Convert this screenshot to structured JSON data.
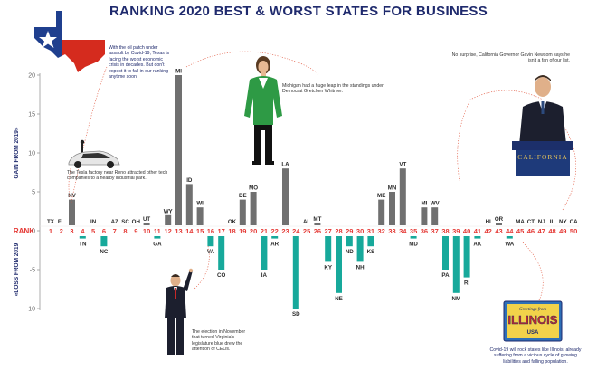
{
  "page_title": "RANKING 2020 BEST & WORST STATES FOR BUSINESS",
  "colors": {
    "gain": "#707070",
    "loss": "#17a99b",
    "rank": "#e53935",
    "title": "#1f2a6d",
    "axis_label": "#1f2a6d"
  },
  "chart_data": {
    "type": "bar",
    "title": "RANKING 2020 BEST & WORST STATES FOR BUSINESS",
    "ylabel_gain": "GAIN FROM 2019»",
    "ylabel_loss": "«LOSS FROM 2019",
    "xlabel": "RANK",
    "ylim": [
      -10,
      20
    ],
    "yticks": [
      20,
      15,
      10,
      5,
      0,
      -5,
      -10
    ],
    "ranks": [
      1,
      2,
      3,
      4,
      5,
      6,
      7,
      8,
      9,
      10,
      11,
      12,
      13,
      14,
      15,
      16,
      17,
      18,
      19,
      20,
      21,
      22,
      23,
      24,
      25,
      26,
      27,
      28,
      29,
      30,
      31,
      32,
      33,
      34,
      35,
      36,
      37,
      38,
      39,
      40,
      41,
      42,
      43,
      44,
      45,
      46,
      47,
      48,
      49,
      50
    ],
    "states": [
      "TX",
      "FL",
      "NV",
      "TN",
      "IN",
      "NC",
      "AZ",
      "SC",
      "OH",
      "UT",
      "GA",
      "WY",
      "MI",
      "ID",
      "WI",
      "VA",
      "CO",
      "OK",
      "DE",
      "MO",
      "IA",
      "AR",
      "LA",
      "SD",
      "AL",
      "MT",
      "KY",
      "NE",
      "ND",
      "NH",
      "KS",
      "ME",
      "MN",
      "VT",
      "MD",
      "MI",
      "WV",
      "PA",
      "NM",
      "RI",
      "AK",
      "HI",
      "OR",
      "WA",
      "MA",
      "CT",
      "NJ",
      "IL",
      "NY",
      "CA"
    ],
    "values": [
      0,
      0,
      4,
      -1,
      0,
      -2,
      0,
      0,
      0,
      1,
      -1,
      2,
      20,
      6,
      3,
      -2,
      -5,
      0,
      4,
      5,
      -5,
      -1,
      8,
      -10,
      0,
      1,
      -4,
      -8,
      -2,
      -4,
      -2,
      4,
      5,
      8,
      -1,
      3,
      3,
      -5,
      -8,
      -6,
      -1,
      0,
      1,
      -1,
      0,
      0,
      0,
      0,
      0,
      0
    ]
  },
  "annotations": {
    "texas": "With the oil patch under assault by Covid-19, Texas is facing the worst economic crisis in decades. But don't expect it to fall in our ranking anytime soon.",
    "tesla": "The Tesla factory near Reno attracted other tech companies to a nearby industrial park.",
    "michigan": "Michigan had a huge leap in the standings under Democrat Gretchen Whitmer.",
    "california": "No surprise, California Governor Gavin Newsom says he isn't a fan of our list.",
    "virginia": "The election in November that turned Virginia's legislature blue drew the attention of CEOs.",
    "illinois": "Covid-19 will rock states like Illinois, already suffering from a vicious cycle of growing liabilities and falling population.",
    "podium_text": "CALIFORNIA",
    "postcard_top": "Greetings from",
    "postcard_main": "ILLINOIS",
    "postcard_sub": "USA"
  }
}
